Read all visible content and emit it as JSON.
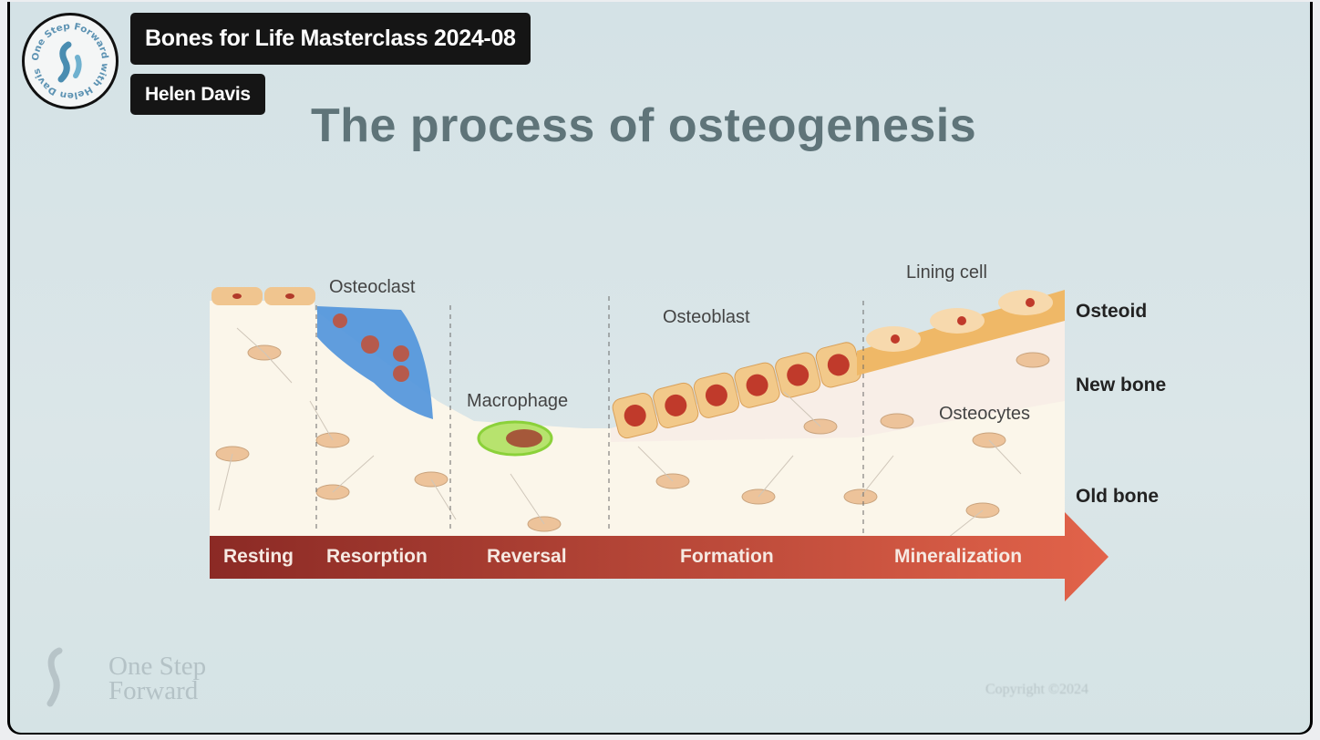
{
  "video": {
    "title": "Bones for Life Masterclass 2024-08",
    "author": "Helen Davis",
    "channel_logo_text": "One Step Forward with Helen Davis"
  },
  "slide": {
    "title": "The process of osteogenesis",
    "cell_labels": {
      "osteoclast": "Osteoclast",
      "macrophage": "Macrophage",
      "osteoblast": "Osteoblast",
      "lining_cell": "Lining cell",
      "osteocytes": "Osteocytes"
    },
    "layer_labels": [
      "Osteoid",
      "New bone",
      "Old bone"
    ],
    "phases": [
      "Resting",
      "Resorption",
      "Reversal",
      "Formation",
      "Mineralization"
    ],
    "watermark": [
      "One Step",
      "Forward"
    ],
    "copyright": "Copyright ©2024"
  },
  "colors": {
    "badge_bg": "#151515",
    "slide_bg": "#d6e3e6",
    "arrow_start": "#8b2a25",
    "arrow_end": "#e2634a",
    "osteoclast": "#4f93dc",
    "macrophage": "#9ed64a",
    "osteoid": "#efb867"
  }
}
